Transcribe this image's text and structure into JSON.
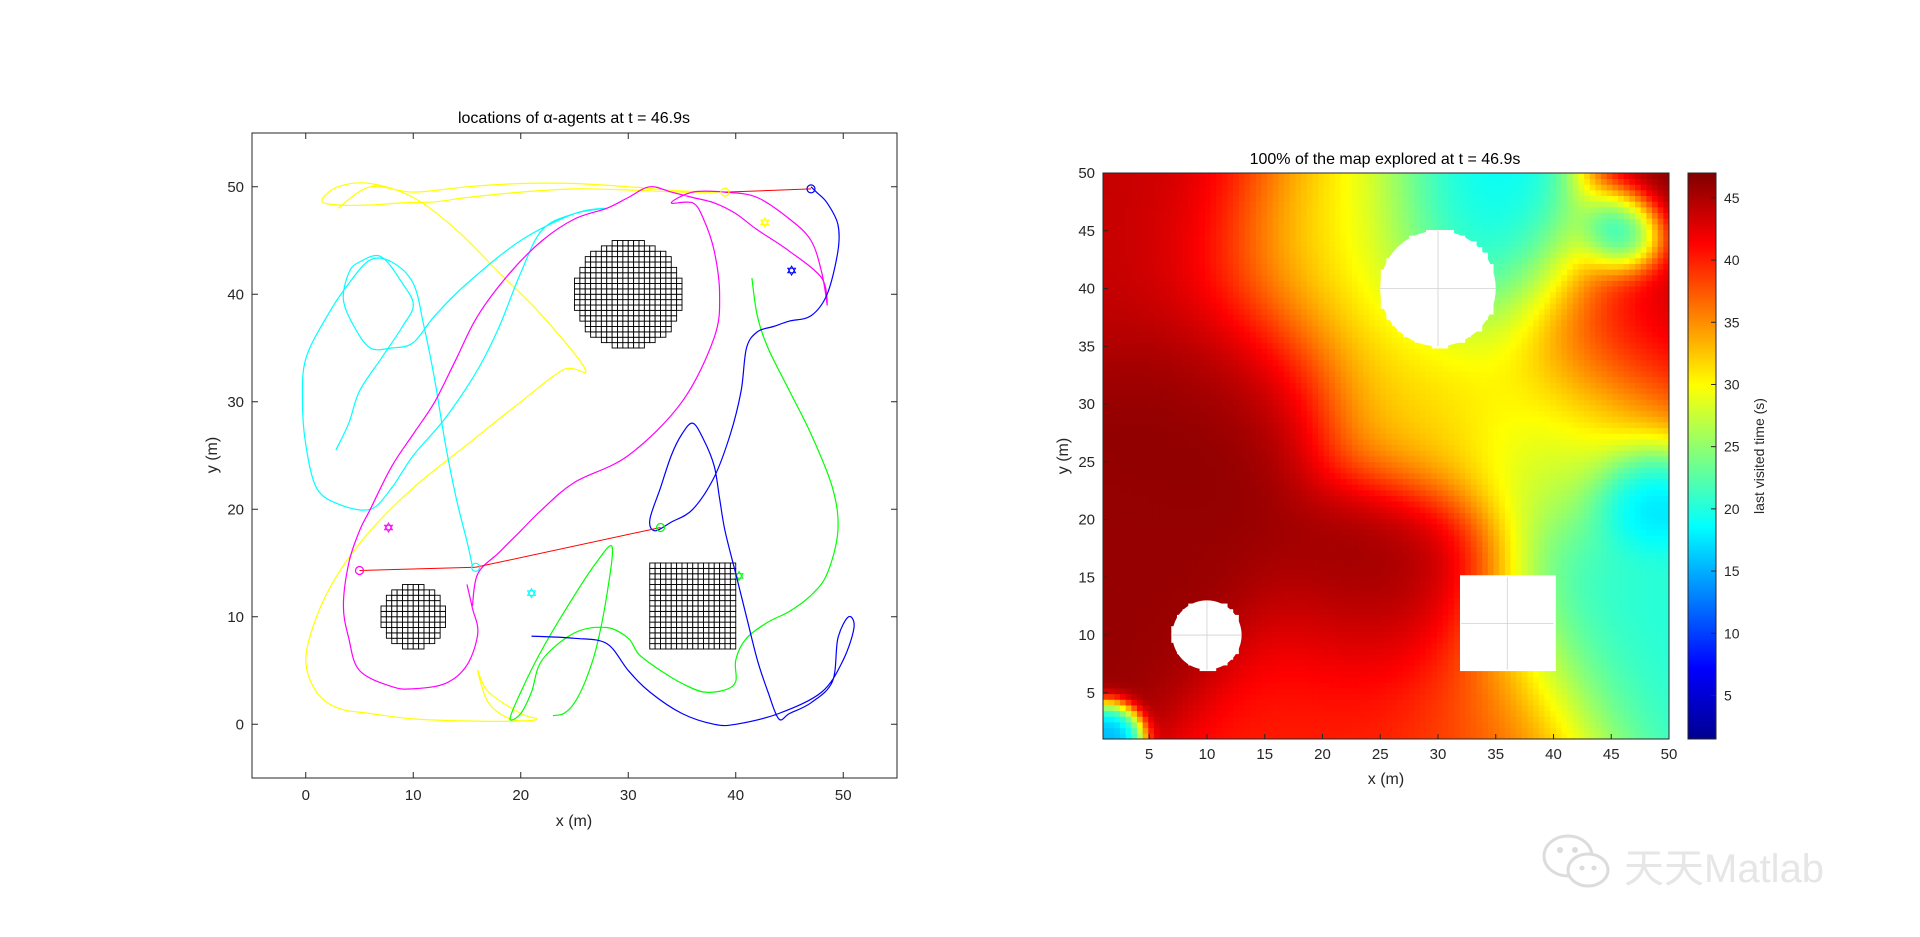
{
  "chart_data": [
    {
      "type": "line",
      "title": "locations of α-agents at t = 46.9s",
      "xlabel": "x (m)",
      "ylabel": "y (m)",
      "xlim": [
        -5,
        55
      ],
      "ylim": [
        -5,
        55
      ],
      "xticks": [
        0,
        10,
        20,
        30,
        40,
        50
      ],
      "yticks": [
        0,
        10,
        20,
        30,
        40,
        50
      ],
      "grid": false,
      "obstacles": [
        {
          "shape": "circle",
          "cx": 30,
          "cy": 40,
          "r": 5
        },
        {
          "shape": "circle",
          "cx": 10,
          "cy": 10,
          "r": 3
        },
        {
          "shape": "square",
          "x0": 32,
          "y0": 7,
          "x1": 40,
          "y1": 15
        }
      ],
      "series": [
        {
          "color": "#ffff00",
          "x": [
            3,
            6,
            10,
            15,
            20,
            25,
            30,
            35,
            38.5,
            35,
            30,
            25,
            20,
            15,
            12,
            9,
            6,
            3,
            1.5,
            3,
            6,
            10,
            14,
            18,
            22,
            26,
            24,
            20,
            15,
            10,
            6,
            3,
            1,
            0,
            1,
            3,
            6,
            10,
            15,
            20,
            21.5,
            20,
            17,
            16,
            17,
            19,
            21
          ],
          "y": [
            48,
            50,
            49.5,
            50,
            50.3,
            50.3,
            50,
            49.6,
            49.5,
            49.5,
            49.7,
            49.8,
            49.5,
            49,
            48.6,
            48.5,
            48.3,
            48.3,
            48.7,
            50,
            50.3,
            49,
            46,
            42,
            38,
            33,
            33,
            30,
            26,
            22,
            18,
            14,
            10,
            6,
            3,
            1.5,
            1,
            0.5,
            0.3,
            0.3,
            0.5,
            1,
            3,
            5,
            2,
            0.5,
            0.3
          ],
          "marker": {
            "x": 42.7,
            "y": 46.7,
            "shape": "hexagram"
          }
        },
        {
          "color": "#00ffff",
          "x": [
            2.8,
            4,
            5,
            7,
            9,
            10,
            9,
            7,
            5,
            4,
            3.5,
            4.5,
            6,
            8,
            10,
            12,
            15,
            20,
            25,
            28,
            25,
            22,
            20,
            18,
            16,
            13,
            10,
            8,
            6,
            3,
            1,
            0,
            -0.3,
            0,
            2,
            4,
            6,
            8,
            10,
            11,
            12,
            13,
            14,
            15,
            15.5
          ],
          "y": [
            25.5,
            28,
            31,
            34,
            37,
            39,
            41,
            43.5,
            43,
            42,
            39.5,
            37,
            35,
            35,
            35.5,
            38,
            41,
            45,
            47.5,
            48,
            47.5,
            46,
            42,
            37,
            33,
            28.5,
            25,
            22,
            20,
            20.5,
            22,
            26,
            30,
            34,
            38,
            41,
            43.2,
            43,
            41,
            37,
            32,
            26,
            21,
            17,
            14.7
          ],
          "marker": {
            "x": 21,
            "y": 12.2,
            "shape": "hexagram"
          }
        },
        {
          "color": "#ff00ff",
          "x": [
            15.5,
            16,
            18,
            20,
            22,
            25,
            30,
            35,
            38,
            38.5,
            38,
            37,
            36,
            34,
            36,
            39,
            42,
            45,
            47,
            48,
            48.5,
            48,
            45,
            42,
            40,
            38,
            36,
            34,
            32,
            30,
            28,
            25,
            22,
            19,
            16,
            14,
            12,
            10,
            8,
            6,
            5,
            4,
            3.5,
            4,
            5,
            8,
            10,
            13,
            15,
            16,
            15.5,
            15
          ],
          "y": [
            11,
            14,
            16,
            18,
            20,
            22.5,
            25,
            30,
            36,
            40,
            44,
            47,
            48.5,
            48.5,
            49.5,
            49.5,
            49,
            47,
            45,
            42,
            39,
            41.5,
            44,
            46,
            47.5,
            48.5,
            49,
            49.5,
            50,
            49,
            48,
            47,
            45,
            42,
            38,
            34,
            30,
            27,
            24,
            20,
            18,
            15,
            11,
            8,
            5,
            3.5,
            3.3,
            3.8,
            5.5,
            8.5,
            10.8,
            13
          ],
          "marker": {
            "x": 7.7,
            "y": 18.3,
            "shape": "hexagram"
          }
        },
        {
          "color": "#00ff00",
          "x": [
            41.5,
            42,
            43,
            45,
            47,
            49,
            49.5,
            48.5,
            47,
            45,
            43,
            41,
            40,
            40,
            39,
            37,
            35,
            33,
            31,
            30,
            28,
            25,
            22,
            21,
            20,
            19,
            20,
            22,
            25,
            27,
            28.5,
            28,
            27,
            26,
            25,
            24,
            23
          ],
          "y": [
            41.5,
            38,
            35,
            31,
            27,
            22,
            18,
            14,
            12,
            10.5,
            9.5,
            8,
            6,
            4,
            3.2,
            3,
            3.8,
            5,
            6.5,
            8,
            9,
            8.5,
            6,
            3,
            1,
            0.5,
            3,
            7,
            12,
            15,
            16.5,
            12,
            7,
            4,
            2,
            1,
            0.8
          ],
          "marker": {
            "x": 40.3,
            "y": 13.8,
            "shape": "hexagram"
          }
        },
        {
          "color": "#0000ff",
          "x": [
            21,
            25,
            28,
            30,
            32,
            35,
            38,
            40,
            44,
            48,
            50,
            51,
            50.5,
            49.5,
            49,
            47,
            45,
            44,
            43,
            42,
            41,
            40,
            39,
            38.5,
            38,
            37,
            36,
            35,
            34,
            33,
            32,
            32.5,
            34,
            36,
            38,
            39.5,
            40.5,
            41,
            42,
            43.5,
            45,
            47,
            48.5,
            49.5,
            49.5,
            48.5,
            47.5,
            47
          ],
          "y": [
            8.2,
            8,
            7.5,
            5,
            3,
            1,
            0,
            0,
            1,
            3,
            6,
            9,
            10,
            8,
            4,
            2,
            1,
            0.5,
            3,
            6,
            10,
            14,
            18,
            21,
            24,
            26.5,
            28,
            27,
            25,
            22,
            19,
            18,
            18.8,
            20,
            23,
            27,
            31,
            35,
            36.5,
            37,
            37.5,
            38,
            40,
            44,
            46.5,
            48.5,
            49.5,
            50
          ],
          "marker": {
            "x": 45.2,
            "y": 42.2,
            "shape": "hexagram"
          }
        }
      ],
      "agents": [
        {
          "x": 5,
          "y": 14.3,
          "color": "#ff00ff"
        },
        {
          "x": 15.8,
          "y": 14.6,
          "color": "#00ffff"
        },
        {
          "x": 33,
          "y": 18.3,
          "color": "#00ff00"
        },
        {
          "x": 39,
          "y": 49.5,
          "color": "#ffff00"
        },
        {
          "x": 47,
          "y": 49.8,
          "color": "#0000ff"
        }
      ],
      "links": [
        {
          "from": 0,
          "to": 1,
          "color": "#ff0000"
        },
        {
          "from": 1,
          "to": 2,
          "color": "#ff0000"
        },
        {
          "from": 3,
          "to": 4,
          "color": "#ff0000"
        }
      ]
    },
    {
      "type": "heatmap",
      "title": "100% of the map explored at t = 46.9s",
      "xlabel": "x (m)",
      "ylabel": "y (m)",
      "xlim": [
        1,
        50
      ],
      "ylim": [
        1,
        50
      ],
      "xticks": [
        5,
        10,
        15,
        20,
        25,
        30,
        35,
        40,
        45,
        50
      ],
      "yticks": [
        5,
        10,
        15,
        20,
        25,
        30,
        35,
        40,
        45,
        50
      ],
      "colorbar": {
        "label": "last visited time (s)",
        "ticks": [
          5,
          10,
          15,
          20,
          25,
          30,
          35,
          40,
          45
        ],
        "range": [
          1.5,
          47
        ]
      },
      "colormap": "jet",
      "field": "last visited time (s)",
      "sources": [
        {
          "x": 50,
          "y": 50,
          "t": 47,
          "r": 6
        },
        {
          "x": 5,
          "y": 15,
          "t": 46,
          "r": 9
        },
        {
          "x": 12,
          "y": 32,
          "t": 46.5,
          "r": 9
        },
        {
          "x": 26,
          "y": 14,
          "t": 46.5,
          "r": 9
        },
        {
          "x": 46,
          "y": 36,
          "t": 45,
          "r": 9
        },
        {
          "x": 6,
          "y": 46,
          "t": 44,
          "r": 10
        },
        {
          "x": 22,
          "y": 3,
          "t": 40,
          "r": 10
        },
        {
          "x": 34,
          "y": 3,
          "t": 38,
          "r": 9
        },
        {
          "x": 20,
          "y": 42,
          "t": 30,
          "r": 10
        },
        {
          "x": 30,
          "y": 31,
          "t": 32,
          "r": 9
        },
        {
          "x": 42,
          "y": 28,
          "t": 26,
          "r": 9
        },
        {
          "x": 35,
          "y": 44,
          "t": 18,
          "r": 9
        },
        {
          "x": 44,
          "y": 10,
          "t": 20,
          "r": 10
        },
        {
          "x": 48,
          "y": 22,
          "t": 14,
          "r": 4
        },
        {
          "x": 46,
          "y": 45,
          "t": 10,
          "r": 3
        },
        {
          "x": 1.5,
          "y": 1.5,
          "t": 14,
          "r": 2
        }
      ],
      "obstacles": [
        {
          "shape": "circle",
          "cx": 30,
          "cy": 40,
          "r": 5
        },
        {
          "shape": "circle",
          "cx": 10,
          "cy": 10,
          "r": 3
        },
        {
          "shape": "square",
          "x0": 32,
          "y0": 7,
          "x1": 40,
          "y1": 15
        }
      ]
    }
  ],
  "watermark": {
    "text": "天天Matlab",
    "icon": "wechat-icon"
  }
}
